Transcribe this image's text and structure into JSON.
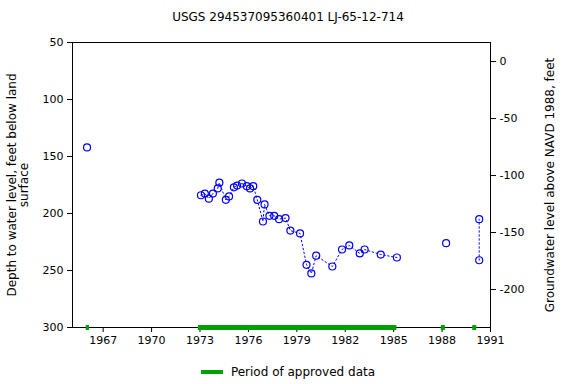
{
  "chart_data": {
    "type": "scatter",
    "title": "USGS 294537095360401 LJ-65-12-714",
    "ylabel": "Depth to water level, feet below land\nsurface",
    "y2label": "Groundwater level above NAVD 1988, feet",
    "x": [
      1966.0,
      1970.0,
      1973.06,
      1973.3,
      1973.55,
      1973.8,
      1974.1,
      1974.2,
      1974.6,
      1974.8,
      1975.1,
      1975.3,
      1975.6,
      1975.9,
      1976.1,
      1976.3,
      1976.55,
      1976.9,
      1977.0,
      1977.3,
      1977.6,
      1977.9,
      1978.3,
      1978.6,
      1979.2,
      1979.6,
      1979.9,
      1980.2,
      1981.2,
      1981.8,
      1982.25,
      1982.9,
      1983.2,
      1984.2,
      1985.2,
      1986.5,
      1988.25,
      1989.0,
      1990.3,
      1990.3
    ],
    "values": [
      142,
      null,
      184,
      182.5,
      187,
      182.5,
      178,
      173,
      188,
      185,
      177,
      175.5,
      173.7,
      176,
      178,
      176,
      188,
      207,
      192,
      202,
      202,
      205,
      204,
      215,
      217.5,
      245,
      252.6,
      237,
      246.5,
      231.6,
      228,
      235,
      231.6,
      236,
      238.6,
      null,
      226,
      null,
      241,
      205
    ],
    "color": "#0000ff",
    "marker": "circle",
    "line_style": "dotted",
    "xlim": [
      1965.1,
      1991
    ],
    "xticks": [
      1967,
      1970,
      1973,
      1976,
      1979,
      1982,
      1985,
      1988,
      1991
    ],
    "ylim": [
      50,
      300
    ],
    "yticks": [
      50,
      100,
      150,
      200,
      250,
      300
    ],
    "y2lim": [
      16.7,
      -233.3
    ],
    "y2ticks": [
      0,
      -50,
      -100,
      -150,
      -200
    ],
    "grid": false,
    "approved_label": "Period of approved data",
    "approved_color": "#00a000",
    "approved_periods": [
      [
        1965.95,
        1966.15
      ],
      [
        1972.9,
        1985.2
      ],
      [
        1987.95,
        1988.2
      ],
      [
        1989.9,
        1990.15
      ]
    ]
  }
}
